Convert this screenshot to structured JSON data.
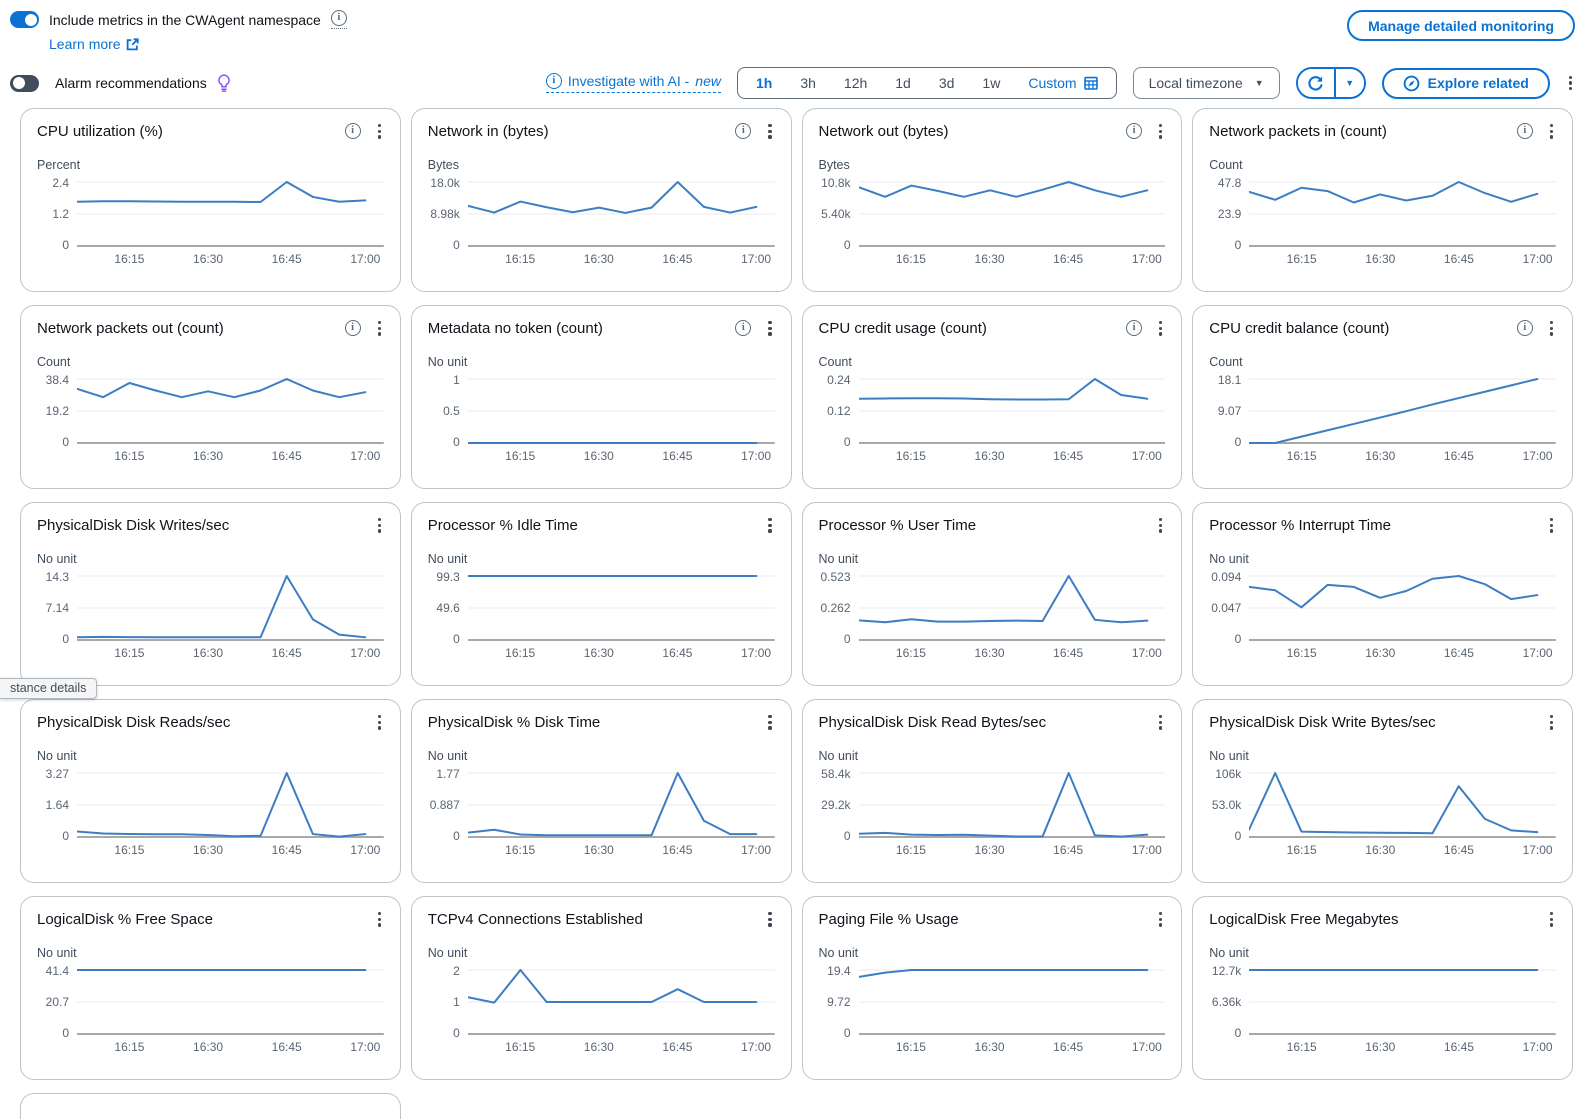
{
  "header": {
    "cwagent_toggle_label": "Include metrics in the CWAgent namespace",
    "cwagent_toggle_state": "on",
    "learn_more_label": "Learn more",
    "manage_button_label": "Manage detailed monitoring",
    "alarm_toggle_label": "Alarm recommendations",
    "alarm_toggle_state": "off",
    "investigate_ai_label": "Investigate with AI - ",
    "investigate_ai_suffix": "new",
    "time_ranges": [
      "1h",
      "3h",
      "12h",
      "1d",
      "3d",
      "1w"
    ],
    "selected_time_range": "1h",
    "custom_range_label": "Custom",
    "timezone_selector_label": "Local timezone",
    "explore_related_label": "Explore related"
  },
  "edge_tooltip_text": "stance details",
  "colors": {
    "accent_blue": "#0972d3",
    "chart_line": "#3c7dc3",
    "gridline": "#e9ebed",
    "axis": "#a8a8a8",
    "lightbulb_purple": "#8c4fff"
  },
  "chart_common": {
    "x_start": "16:05",
    "x_interval_minutes": 5,
    "points_per_series": 12,
    "x_tick_labels": [
      "16:15",
      "16:30",
      "16:45",
      "17:00"
    ],
    "x_tick_point_indices": [
      2,
      5,
      8,
      11
    ],
    "grid": true,
    "legend": "none"
  },
  "chart_data": [
    {
      "type": "line",
      "title": "CPU utilization (%)",
      "ylabel": "Percent",
      "has_info": true,
      "yticks": [
        "2.4",
        "1.2",
        "0"
      ],
      "ymax": 2.4,
      "values": [
        1.66,
        1.68,
        1.68,
        1.67,
        1.66,
        1.66,
        1.66,
        1.65,
        2.4,
        1.84,
        1.66,
        1.71
      ]
    },
    {
      "type": "line",
      "title": "Network in (bytes)",
      "ylabel": "Bytes",
      "has_info": true,
      "yticks": [
        "18.0k",
        "8.98k",
        "0"
      ],
      "ymax": 18000,
      "values": [
        11300,
        9400,
        12500,
        10900,
        9500,
        10800,
        9300,
        10800,
        18000,
        11000,
        9400,
        11000
      ]
    },
    {
      "type": "line",
      "title": "Network out (bytes)",
      "ylabel": "Bytes",
      "has_info": true,
      "yticks": [
        "10.8k",
        "5.40k",
        "0"
      ],
      "ymax": 10800,
      "values": [
        9900,
        8300,
        10200,
        9300,
        8300,
        9400,
        8300,
        9500,
        10800,
        9400,
        8300,
        9400
      ]
    },
    {
      "type": "line",
      "title": "Network packets in (count)",
      "ylabel": "Count",
      "has_info": true,
      "yticks": [
        "47.8",
        "23.9",
        "0"
      ],
      "ymax": 47.8,
      "values": [
        40.5,
        34.5,
        43.5,
        41,
        32.5,
        38.5,
        34,
        37.5,
        47.8,
        39.5,
        33,
        39
      ]
    },
    {
      "type": "line",
      "title": "Network packets out (count)",
      "ylabel": "Count",
      "has_info": true,
      "yticks": [
        "38.4",
        "19.2",
        "0"
      ],
      "ymax": 38.4,
      "values": [
        32.5,
        27.5,
        36,
        31.5,
        27.5,
        31,
        27.5,
        31.5,
        38.4,
        31.5,
        27.5,
        30.5
      ]
    },
    {
      "type": "line",
      "title": "Metadata no token (count)",
      "ylabel": "No unit",
      "has_info": true,
      "yticks": [
        "1",
        "0.5",
        "0"
      ],
      "ymax": 1,
      "values": [
        0,
        0,
        0,
        0,
        0,
        0,
        0,
        0,
        0,
        0,
        0,
        0
      ]
    },
    {
      "type": "line",
      "title": "CPU credit usage (count)",
      "ylabel": "Count",
      "has_info": true,
      "yticks": [
        "0.24",
        "0.12",
        "0"
      ],
      "ymax": 0.24,
      "values": [
        0.166,
        0.167,
        0.168,
        0.168,
        0.167,
        0.164,
        0.163,
        0.163,
        0.164,
        0.24,
        0.18,
        0.166
      ]
    },
    {
      "type": "line",
      "title": "CPU credit balance (count)",
      "ylabel": "Count",
      "has_info": true,
      "yticks": [
        "18.1",
        "9.07",
        "0"
      ],
      "ymax": 18.1,
      "values": [
        0,
        0,
        1.8,
        3.6,
        5.4,
        7.2,
        9.0,
        10.9,
        12.7,
        14.5,
        16.3,
        18.1
      ]
    },
    {
      "type": "line",
      "title": "PhysicalDisk Disk Writes/sec",
      "ylabel": "No unit",
      "has_info": false,
      "yticks": [
        "14.3",
        "7.14",
        "0"
      ],
      "ymax": 14.3,
      "values": [
        0.6,
        0.7,
        0.65,
        0.6,
        0.6,
        0.6,
        0.6,
        0.6,
        14.3,
        4.6,
        1.2,
        0.6
      ]
    },
    {
      "type": "line",
      "title": "Processor % Idle Time",
      "ylabel": "No unit",
      "has_info": false,
      "yticks": [
        "99.3",
        "49.6",
        "0"
      ],
      "ymax": 99.3,
      "values": [
        99.3,
        99.3,
        99.3,
        99.3,
        99.3,
        99.3,
        99.3,
        99.3,
        99.3,
        99.3,
        99.3,
        99.3
      ]
    },
    {
      "type": "line",
      "title": "Processor % User Time",
      "ylabel": "No unit",
      "has_info": false,
      "yticks": [
        "0.523",
        "0.262",
        "0"
      ],
      "ymax": 0.523,
      "values": [
        0.16,
        0.145,
        0.17,
        0.15,
        0.15,
        0.155,
        0.158,
        0.155,
        0.523,
        0.165,
        0.145,
        0.158
      ]
    },
    {
      "type": "line",
      "title": "Processor % Interrupt Time",
      "ylabel": "No unit",
      "has_info": false,
      "yticks": [
        "0.094",
        "0.047",
        "0"
      ],
      "ymax": 0.094,
      "values": [
        0.078,
        0.073,
        0.048,
        0.081,
        0.078,
        0.062,
        0.072,
        0.09,
        0.094,
        0.082,
        0.06,
        0.066
      ]
    },
    {
      "type": "line",
      "title": "PhysicalDisk Disk Reads/sec",
      "ylabel": "No unit",
      "has_info": false,
      "yticks": [
        "3.27",
        "1.64",
        "0"
      ],
      "ymax": 3.27,
      "values": [
        0.28,
        0.18,
        0.15,
        0.14,
        0.14,
        0.1,
        0.04,
        0.06,
        3.27,
        0.15,
        0.02,
        0.15
      ]
    },
    {
      "type": "line",
      "title": "PhysicalDisk % Disk Time",
      "ylabel": "No unit",
      "has_info": false,
      "yticks": [
        "1.77",
        "0.887",
        "0"
      ],
      "ymax": 1.77,
      "values": [
        0.12,
        0.2,
        0.07,
        0.05,
        0.05,
        0.05,
        0.05,
        0.05,
        1.77,
        0.45,
        0.08,
        0.08
      ]
    },
    {
      "type": "line",
      "title": "PhysicalDisk Disk Read Bytes/sec",
      "ylabel": "No unit",
      "has_info": false,
      "yticks": [
        "58.4k",
        "29.2k",
        "0"
      ],
      "ymax": 58400,
      "values": [
        3000,
        3800,
        2200,
        1800,
        2000,
        1200,
        500,
        400,
        58400,
        1500,
        400,
        2200
      ]
    },
    {
      "type": "line",
      "title": "PhysicalDisk Disk Write Bytes/sec",
      "ylabel": "No unit",
      "has_info": false,
      "yticks": [
        "106k",
        "53.0k",
        "0"
      ],
      "ymax": 106000,
      "values": [
        12000,
        106000,
        9000,
        8000,
        7500,
        7000,
        6800,
        6200,
        84000,
        30000,
        11000,
        8000
      ]
    },
    {
      "type": "line",
      "title": "LogicalDisk % Free Space",
      "ylabel": "No unit",
      "has_info": false,
      "yticks": [
        "41.4",
        "20.7",
        "0"
      ],
      "ymax": 41.4,
      "values": [
        41.4,
        41.4,
        41.4,
        41.4,
        41.4,
        41.4,
        41.4,
        41.4,
        41.4,
        41.4,
        41.4,
        41.4
      ]
    },
    {
      "type": "line",
      "title": "TCPv4 Connections Established",
      "ylabel": "No unit",
      "has_info": false,
      "yticks": [
        "2",
        "1",
        "0"
      ],
      "ymax": 2,
      "values": [
        1.15,
        0.98,
        2,
        1,
        1,
        1,
        1,
        1,
        1.4,
        1,
        1,
        1
      ]
    },
    {
      "type": "line",
      "title": "Paging File % Usage",
      "ylabel": "No unit",
      "has_info": false,
      "yticks": [
        "19.4",
        "9.72",
        "0"
      ],
      "ymax": 19.4,
      "values": [
        17.3,
        18.6,
        19.4,
        19.4,
        19.4,
        19.4,
        19.4,
        19.4,
        19.4,
        19.4,
        19.4,
        19.4
      ]
    },
    {
      "type": "line",
      "title": "LogicalDisk Free Megabytes",
      "ylabel": "No unit",
      "has_info": false,
      "yticks": [
        "12.7k",
        "6.36k",
        "0"
      ],
      "ymax": 12700,
      "values": [
        12700,
        12700,
        12700,
        12700,
        12700,
        12700,
        12700,
        12700,
        12700,
        12700,
        12700,
        12700
      ]
    }
  ]
}
